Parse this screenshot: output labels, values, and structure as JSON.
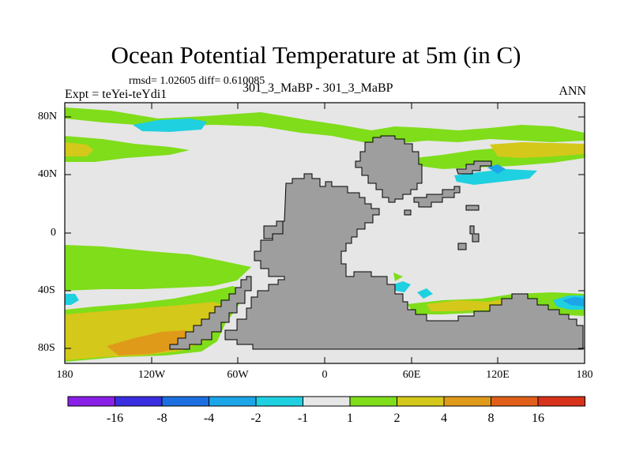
{
  "title": "Ocean Potential Temperature at 5m (in C)",
  "stats": "rmsd= 1.02605  diff= 0.610085",
  "experiment": "Expt = teYei-teYdi1",
  "case": "301_3_MaBP - 301_3_MaBP",
  "season": "ANN",
  "y_ticks": [
    "80N",
    "40N",
    "0",
    "40S",
    "80S"
  ],
  "x_ticks": [
    "180",
    "120W",
    "60W",
    "0",
    "60E",
    "120E",
    "180"
  ],
  "colorbar": {
    "levels": [
      "-16",
      "-8",
      "-4",
      "-2",
      "-1",
      "1",
      "2",
      "4",
      "8",
      "16"
    ],
    "colors": [
      "#8a1fe8",
      "#3a2ee0",
      "#1c6fe0",
      "#1aa6e8",
      "#1fd0e0",
      "#e6e6e6",
      "#7fdd1a",
      "#d4c81a",
      "#e09a1a",
      "#e0601a",
      "#d8321a"
    ]
  },
  "colors": {
    "land": "#9e9e9e",
    "ocean_neutral": "#e6e6e6",
    "green": "#7fdd1a",
    "yellow": "#d4c81a",
    "orange": "#e09a1a",
    "cyan": "#1fd0e0",
    "blue": "#1aa6e8"
  }
}
